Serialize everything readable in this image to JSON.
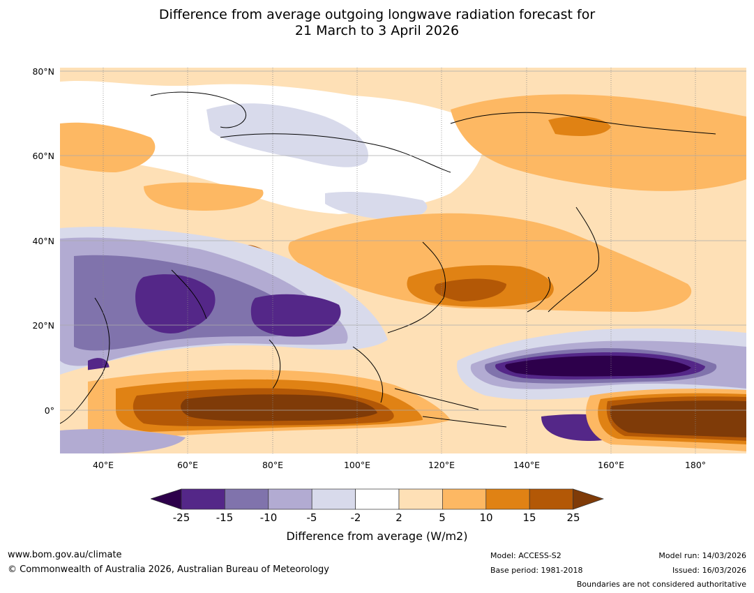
{
  "title_line1": "Difference from average outgoing longwave radiation forecast for",
  "title_line2": "21 March to 3 April 2026",
  "lat_labels": [
    "80°N",
    "60°N",
    "40°N",
    "20°N",
    "0°"
  ],
  "lon_labels": [
    "40°E",
    "60°E",
    "80°E",
    "100°E",
    "120°E",
    "140°E",
    "160°E",
    "180°"
  ],
  "colorbar": {
    "ticks": [
      "-25",
      "-15",
      "-10",
      "-5",
      "-2",
      "2",
      "5",
      "10",
      "15",
      "25"
    ],
    "colors": [
      "#2d004b",
      "#542788",
      "#8073ac",
      "#b2abd2",
      "#d8daeb",
      "#ffffff",
      "#fee0b6",
      "#fdb863",
      "#e08214",
      "#b35806",
      "#7f3b08"
    ],
    "label": "Difference from average (W/m2)"
  },
  "footer": {
    "website": "www.bom.gov.au/climate",
    "copyright": "© Commonwealth of Australia 2026, Australian Bureau of Meteorology",
    "model": "Model: ACCESS-S2",
    "base_period": "Base period: 1981-2018",
    "model_run": "Model run: 14/03/2026",
    "issued": "Issued: 16/03/2026",
    "boundaries": "Boundaries are not considered authoritative"
  }
}
